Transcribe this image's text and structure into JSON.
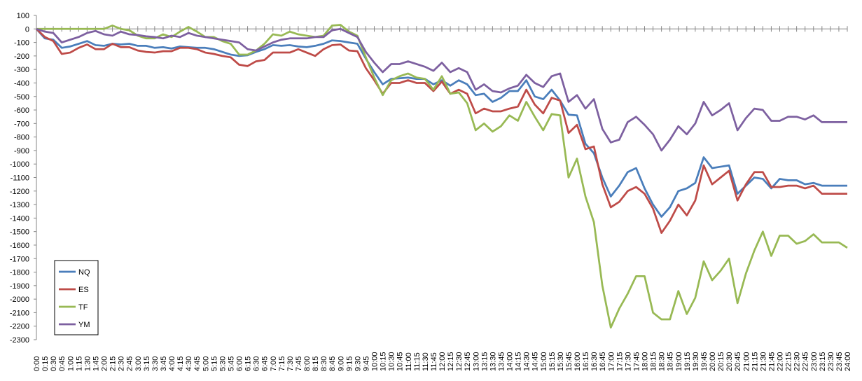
{
  "chart_data": {
    "type": "line",
    "categories": [
      "0:00",
      "0:15",
      "0:30",
      "0:45",
      "1:00",
      "1:15",
      "1:30",
      "1:45",
      "2:00",
      "2:15",
      "2:30",
      "2:45",
      "3:00",
      "3:15",
      "3:30",
      "3:45",
      "4:00",
      "4:15",
      "4:30",
      "4:45",
      "5:00",
      "5:15",
      "5:30",
      "5:45",
      "6:00",
      "6:15",
      "6:30",
      "6:45",
      "7:00",
      "7:15",
      "7:30",
      "7:45",
      "8:00",
      "8:15",
      "8:30",
      "8:45",
      "9:00",
      "9:15",
      "9:30",
      "9:45",
      "10:00",
      "10:15",
      "10:30",
      "10:45",
      "11:00",
      "11:15",
      "11:30",
      "11:45",
      "12:00",
      "12:15",
      "12:30",
      "12:45",
      "13:00",
      "13:15",
      "13:30",
      "13:45",
      "14:00",
      "14:15",
      "14:30",
      "14:45",
      "15:00",
      "15:15",
      "15:30",
      "15:45",
      "16:00",
      "16:15",
      "16:30",
      "16:45",
      "17:00",
      "17:15",
      "17:30",
      "17:45",
      "18:00",
      "18:15",
      "18:30",
      "18:45",
      "19:00",
      "19:15",
      "19:30",
      "19:45",
      "20:00",
      "20:15",
      "20:30",
      "20:45",
      "21:00",
      "21:15",
      "21:30",
      "21:45",
      "22:00",
      "22:15",
      "22:30",
      "22:45",
      "23:00",
      "23:15",
      "23:30",
      "23:45",
      "24:00"
    ],
    "series": [
      {
        "name": "NQ",
        "color": "#4a7ebb",
        "values": [
          0,
          -70,
          -80,
          -140,
          -130,
          -110,
          -90,
          -120,
          -125,
          -110,
          -115,
          -110,
          -125,
          -125,
          -140,
          -135,
          -145,
          -130,
          -135,
          -140,
          -140,
          -150,
          -170,
          -190,
          -200,
          -195,
          -170,
          -150,
          -120,
          -125,
          -120,
          -130,
          -135,
          -125,
          -110,
          -85,
          -90,
          -100,
          -110,
          -220,
          -320,
          -410,
          -370,
          -365,
          -360,
          -370,
          -370,
          -410,
          -380,
          -420,
          -380,
          -410,
          -490,
          -480,
          -540,
          -510,
          -460,
          -460,
          -380,
          -500,
          -520,
          -450,
          -530,
          -635,
          -640,
          -850,
          -920,
          -1100,
          -1240,
          -1160,
          -1060,
          -1030,
          -1180,
          -1300,
          -1390,
          -1320,
          -1200,
          -1180,
          -1140,
          -950,
          -1030,
          -1020,
          -1010,
          -1220,
          -1160,
          -1100,
          -1110,
          -1180,
          -1110,
          -1120,
          -1120,
          -1150,
          -1140,
          -1160,
          -1160,
          -1160,
          -1160
        ]
      },
      {
        "name": "ES",
        "color": "#be4b48",
        "values": [
          0,
          -60,
          -90,
          -185,
          -175,
          -140,
          -115,
          -150,
          -150,
          -110,
          -135,
          -135,
          -160,
          -170,
          -175,
          -165,
          -165,
          -140,
          -140,
          -150,
          -175,
          -185,
          -200,
          -210,
          -265,
          -275,
          -240,
          -230,
          -175,
          -175,
          -175,
          -150,
          -175,
          -200,
          -150,
          -120,
          -115,
          -160,
          -165,
          -290,
          -380,
          -480,
          -400,
          -400,
          -380,
          -400,
          -400,
          -460,
          -390,
          -480,
          -450,
          -480,
          -625,
          -590,
          -610,
          -610,
          -590,
          -575,
          -450,
          -560,
          -625,
          -510,
          -530,
          -770,
          -710,
          -890,
          -870,
          -1150,
          -1320,
          -1280,
          -1200,
          -1170,
          -1220,
          -1330,
          -1510,
          -1420,
          -1300,
          -1380,
          -1270,
          -1010,
          -1150,
          -1100,
          -1050,
          -1270,
          -1150,
          -1060,
          -1060,
          -1170,
          -1170,
          -1160,
          -1160,
          -1180,
          -1160,
          -1220,
          -1220,
          -1220,
          -1220
        ]
      },
      {
        "name": "TF",
        "color": "#98b954",
        "values": [
          0,
          0,
          0,
          0,
          0,
          0,
          0,
          0,
          0,
          25,
          0,
          -10,
          -50,
          -70,
          -70,
          -40,
          -60,
          -20,
          15,
          -20,
          -60,
          -60,
          -90,
          -110,
          -190,
          -190,
          -160,
          -110,
          -40,
          -50,
          -20,
          -40,
          -50,
          -60,
          -50,
          25,
          30,
          -20,
          -50,
          -210,
          -360,
          -490,
          -380,
          -350,
          -330,
          -360,
          -370,
          -450,
          -350,
          -480,
          -470,
          -550,
          -750,
          -700,
          -760,
          -720,
          -640,
          -680,
          -540,
          -650,
          -750,
          -630,
          -640,
          -1100,
          -960,
          -1240,
          -1430,
          -1900,
          -2210,
          -2070,
          -1960,
          -1830,
          -1830,
          -2100,
          -2150,
          -2150,
          -1940,
          -2110,
          -1990,
          -1720,
          -1860,
          -1790,
          -1700,
          -2030,
          -1810,
          -1640,
          -1500,
          -1680,
          -1530,
          -1530,
          -1590,
          -1570,
          -1520,
          -1580,
          -1580,
          -1580,
          -1620
        ]
      },
      {
        "name": "YM",
        "color": "#7d60a0",
        "values": [
          0,
          -20,
          -30,
          -100,
          -80,
          -60,
          -30,
          -15,
          -40,
          -50,
          -20,
          -40,
          -45,
          -55,
          -60,
          -70,
          -50,
          -60,
          -30,
          -50,
          -60,
          -70,
          -80,
          -90,
          -100,
          -150,
          -160,
          -130,
          -100,
          -80,
          -70,
          -70,
          -70,
          -60,
          -60,
          -10,
          0,
          -30,
          -60,
          -170,
          -250,
          -320,
          -260,
          -260,
          -240,
          -260,
          -280,
          -310,
          -250,
          -320,
          -290,
          -320,
          -450,
          -410,
          -460,
          -470,
          -440,
          -420,
          -340,
          -400,
          -430,
          -350,
          -330,
          -540,
          -490,
          -590,
          -520,
          -740,
          -840,
          -820,
          -690,
          -650,
          -710,
          -780,
          -900,
          -820,
          -720,
          -780,
          -700,
          -540,
          -640,
          -600,
          -550,
          -750,
          -660,
          -590,
          -600,
          -680,
          -680,
          -650,
          -650,
          -670,
          -640,
          -690,
          -690,
          -690,
          -690
        ]
      }
    ],
    "ylim": [
      -2300,
      100
    ],
    "yticks": [
      100,
      0,
      -100,
      -200,
      -300,
      -400,
      -500,
      -600,
      -700,
      -800,
      -900,
      -1000,
      -1100,
      -1200,
      -1300,
      -1400,
      -1500,
      -1600,
      -1700,
      -1800,
      -1900,
      -2000,
      -2100,
      -2200,
      -2300
    ],
    "grid": false,
    "legend": "bottom-left"
  }
}
